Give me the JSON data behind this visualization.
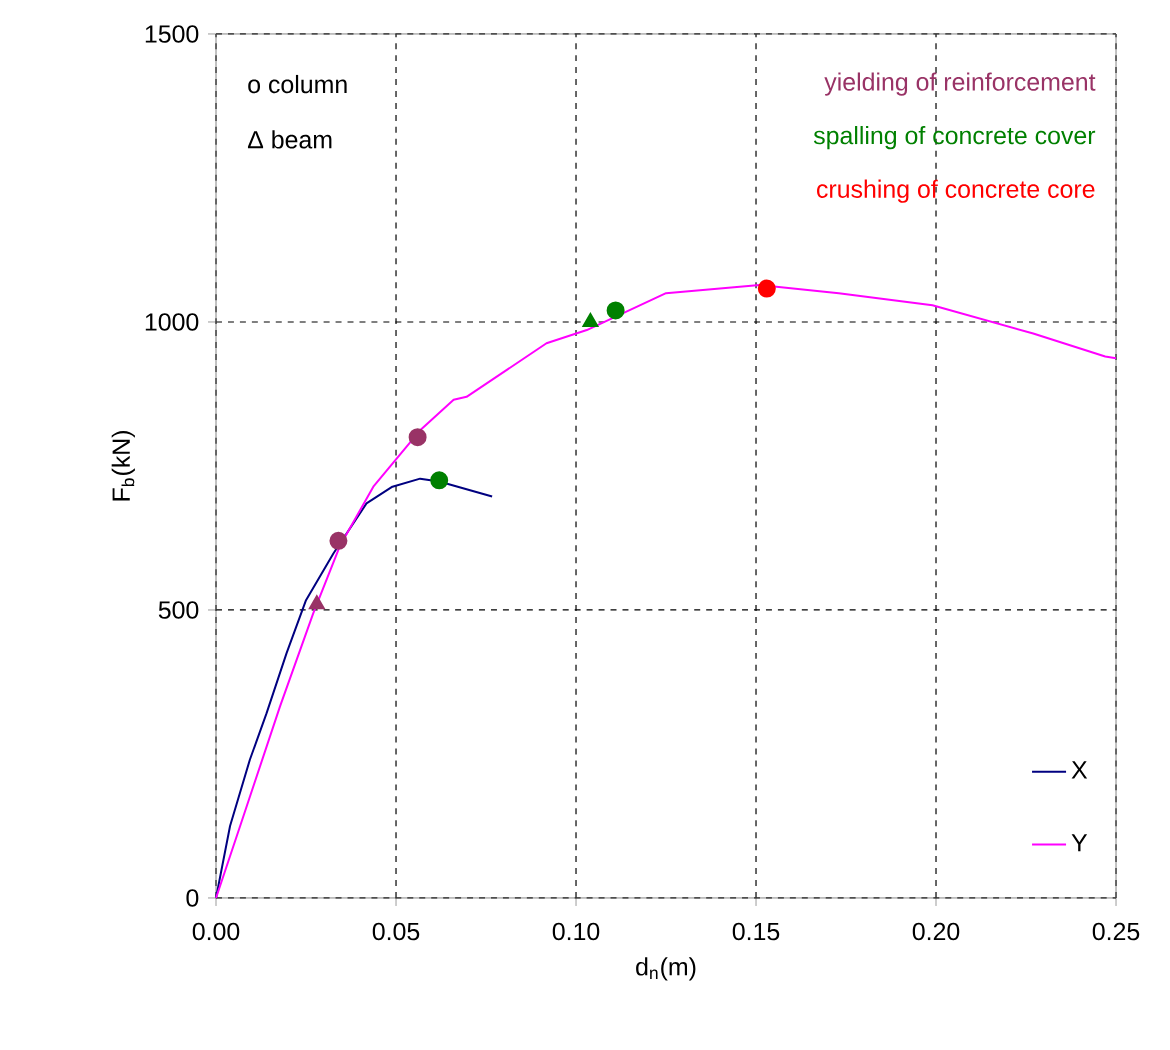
{
  "chart_data": {
    "type": "line",
    "xlabel": "d$_{n}$(m)",
    "ylabel": "F$_{b}$(kN)",
    "xlim": [
      0,
      0.25
    ],
    "ylim": [
      0,
      1500
    ],
    "xticks": [
      {
        "value": 0,
        "label": "0.00"
      },
      {
        "value": 0.05,
        "label": "0.05"
      },
      {
        "value": 0.1,
        "label": "0.10"
      },
      {
        "value": 0.15,
        "label": "0.15"
      },
      {
        "value": 0.2,
        "label": "0.20"
      },
      {
        "value": 0.25,
        "label": "0.25"
      }
    ],
    "yticks": [
      0,
      500,
      1000,
      1500
    ],
    "grid": true,
    "legend": "bottom right",
    "annotations": [
      "o column",
      "Δ beam"
    ],
    "series": [
      {
        "name": "X",
        "color": "#000080",
        "x": [
          0,
          0.0039,
          0.0094,
          0.014,
          0.0196,
          0.025,
          0.0326,
          0.0418,
          0.049,
          0.0567,
          0.062,
          0.0767
        ],
        "values": [
          0,
          125,
          240,
          320,
          425,
          517,
          598,
          685,
          714,
          728,
          723,
          697
        ]
      },
      {
        "name": "Y",
        "color": "#ff00ff",
        "x": [
          0,
          0.0067,
          0.0178,
          0.027,
          0.0344,
          0.0437,
          0.0567,
          0.066,
          0.0696,
          0.0918,
          0.103,
          0.125,
          0.151,
          0.173,
          0.199,
          0.227,
          0.247,
          0.25
        ],
        "values": [
          0,
          125,
          333,
          494,
          611,
          714,
          812,
          865,
          870,
          963,
          986,
          1050,
          1064,
          1050,
          1029,
          980,
          940,
          937
        ]
      },
      {
        "name": "yielding of reinforcement",
        "type": "scatter",
        "marker": "circle",
        "color": "#993366",
        "x": [
          0.034,
          0.056
        ],
        "values": [
          620,
          800
        ]
      },
      {
        "type": "scatter",
        "marker": "triangle",
        "color": "#993366",
        "x": [
          0.028
        ],
        "values": [
          510
        ]
      },
      {
        "name": "spalling of concrete cover",
        "type": "scatter",
        "marker": "circle",
        "color": "#008000",
        "x": [
          0.111,
          0.062
        ],
        "values": [
          1020,
          725
        ]
      },
      {
        "type": "scatter",
        "marker": "triangle",
        "color": "#008000",
        "x": [
          0.104
        ],
        "values": [
          1000
        ]
      },
      {
        "name": "crushing of concrete core",
        "type": "scatter",
        "marker": "circle",
        "color": "#ff0000",
        "x": [
          0.153
        ],
        "values": [
          1058
        ]
      }
    ]
  }
}
